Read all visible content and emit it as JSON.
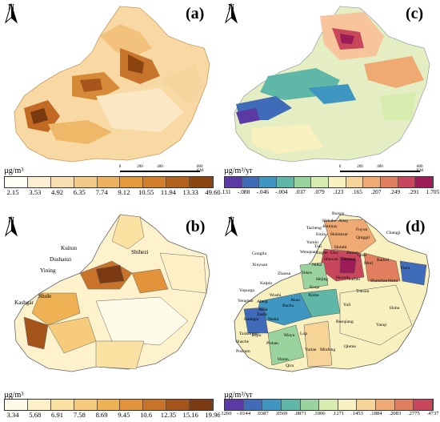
{
  "panels": {
    "a": {
      "label": "(a)",
      "unit": "µg/m³",
      "scale": {
        "ticks": [
          "0",
          "200",
          "400",
          "800 KM"
        ]
      },
      "legend": {
        "values": [
          "2.15",
          "3.53",
          "4.92",
          "6.35",
          "7.74",
          "9.12",
          "10.55",
          "11.94",
          "13.33",
          "49.60"
        ],
        "colors": [
          "#fffef5",
          "#fbeed2",
          "#f7dfb0",
          "#f2cb88",
          "#ebb15e",
          "#e39a3f",
          "#d17f2a",
          "#b2611c",
          "#8b4410"
        ]
      }
    },
    "c": {
      "label": "(c)",
      "unit": "µg/m³/yr",
      "scale": {
        "ticks": [
          "0",
          "200",
          "400",
          "800 KM"
        ]
      },
      "legend": {
        "values": [
          "-.131",
          "-.088",
          "-.046",
          "-.004",
          ".037",
          ".079",
          ".123",
          ".165",
          ".207",
          ".249",
          ".291",
          "1.705"
        ],
        "colors": [
          "#5c3aa6",
          "#3f6bb8",
          "#3f96c0",
          "#5fb8a7",
          "#9bd39f",
          "#d7edb0",
          "#f8f1bf",
          "#f6d498",
          "#efaa74",
          "#e17e5e",
          "#c9475a",
          "#9c1c58"
        ]
      }
    },
    "b": {
      "label": "(b)",
      "unit": "µg/m³",
      "cities": [
        "Kuitun",
        "Shihezi",
        "Dushanzi",
        "Yining",
        "Kashgar",
        "Shule"
      ],
      "legend": {
        "values": [
          "3.34",
          "5.68",
          "6.91",
          "7.58",
          "8.69",
          "9.45",
          "10.6",
          "12.35",
          "15.16",
          "19.96"
        ],
        "colors": [
          "#fffbe9",
          "#fdefc6",
          "#fbe2a3",
          "#f6cc7c",
          "#eeb154",
          "#e1923a",
          "#c9732a",
          "#a4531b",
          "#7b3a12"
        ]
      }
    },
    "d": {
      "label": "(d)",
      "unit": "µg/m³/yr",
      "regions": [
        "Burqin",
        "Habahe",
        "Altay",
        "Jeminay",
        "Fuyun",
        "Tacheng",
        "Emin",
        "Hoboksar",
        "Qinggil",
        "Changji",
        "Yumin",
        "Toli",
        "Wenquan",
        "Jinghe",
        "Usu",
        "Hutubi",
        "Jimsar",
        "Qitai",
        "Gongliu",
        "Barkol",
        "Xinyuan",
        "Nilka",
        "Shawan",
        "Urumqi",
        "Mori",
        "Yiwu",
        "Zhaosu",
        "Tekes",
        "Hejing",
        "Hoxud",
        "Turfan",
        "Shanshan",
        "Hami",
        "Kalpin",
        "Wushi",
        "Xinhe",
        "Kuqa",
        "Toksun",
        "Yopurga",
        "Yengisar",
        "Aksu",
        "Yuli",
        "Hohu",
        "Bachu",
        "Ruoqiang",
        "Yanqi",
        "Makit",
        "Shache",
        "Poskam",
        "Taxkorgan",
        "Zepu",
        "Pishan",
        "Moyu",
        "Lop",
        "Yutian",
        "Qiemo",
        "Minfeng",
        "Hotan",
        "Qira",
        "Awat",
        "Jiashi",
        "Aheqi",
        "Kashgar"
      ],
      "legend": {
        "values": [
          "-.1260",
          "-.0144",
          ".0387",
          ".0569",
          ".0871",
          ".1006",
          ".1271",
          ".1453",
          ".1884",
          ".2083",
          ".2775",
          ".4737"
        ],
        "colors": [
          "#5c3aa6",
          "#3f6bb8",
          "#3f96c0",
          "#5fb8a7",
          "#9bd39f",
          "#d7edb0",
          "#f8f1bf",
          "#f6d498",
          "#efaa74",
          "#e17e5e",
          "#c9475a"
        ]
      }
    }
  }
}
